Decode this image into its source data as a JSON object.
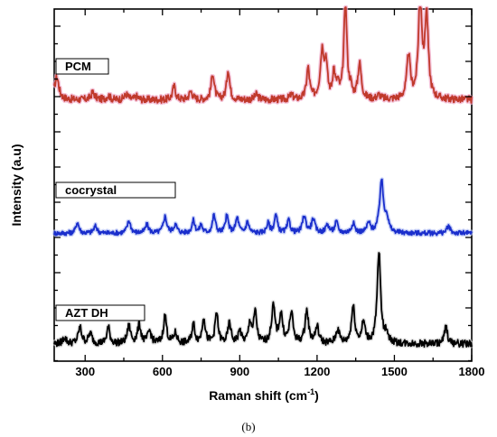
{
  "caption": "(b)",
  "chart_data": {
    "type": "line",
    "xlabel_main": "Raman shift (cm",
    "xlabel_sup": "-1",
    "xlabel_end": ")",
    "ylabel": "Intensity (a.u)",
    "xlim": [
      180,
      1800
    ],
    "xticks": [
      "300",
      "600",
      "900",
      "1200",
      "1500",
      "1800"
    ],
    "xtick_values": [
      300,
      600,
      900,
      1200,
      1500,
      1800
    ],
    "baseline_noise": 0.035,
    "series": [
      {
        "name": "PCM",
        "color": "#c0392b",
        "glow": "#f0a6c8",
        "ylim": [
          0,
          1
        ],
        "baseline": 0.1,
        "peaks": [
          [
            190,
            0.22,
            10
          ],
          [
            330,
            0.07,
            9
          ],
          [
            390,
            0.04,
            8
          ],
          [
            460,
            0.05,
            9
          ],
          [
            500,
            0.03,
            8
          ],
          [
            645,
            0.13,
            7
          ],
          [
            710,
            0.08,
            8
          ],
          [
            795,
            0.26,
            7
          ],
          [
            855,
            0.29,
            7
          ],
          [
            965,
            0.05,
            8
          ],
          [
            1100,
            0.04,
            8
          ],
          [
            1165,
            0.3,
            7
          ],
          [
            1220,
            0.47,
            9
          ],
          [
            1235,
            0.3,
            6
          ],
          [
            1265,
            0.25,
            6
          ],
          [
            1280,
            0.12,
            6
          ],
          [
            1310,
            0.95,
            7
          ],
          [
            1330,
            0.08,
            6
          ],
          [
            1365,
            0.34,
            8
          ],
          [
            1440,
            0.04,
            8
          ],
          [
            1555,
            0.42,
            8
          ],
          [
            1600,
            0.98,
            8
          ],
          [
            1625,
            0.8,
            8
          ]
        ]
      },
      {
        "name": "cocrystal",
        "color": "#1a2ecc",
        "glow": "#b3c0f5",
        "ylim": [
          0,
          1
        ],
        "baseline": 0.1,
        "peaks": [
          [
            270,
            0.16,
            7
          ],
          [
            340,
            0.1,
            8
          ],
          [
            470,
            0.18,
            8
          ],
          [
            540,
            0.12,
            8
          ],
          [
            610,
            0.24,
            8
          ],
          [
            650,
            0.12,
            8
          ],
          [
            720,
            0.18,
            7
          ],
          [
            750,
            0.12,
            6
          ],
          [
            800,
            0.26,
            7
          ],
          [
            850,
            0.25,
            7
          ],
          [
            890,
            0.22,
            7
          ],
          [
            930,
            0.16,
            7
          ],
          [
            1010,
            0.14,
            7
          ],
          [
            1040,
            0.26,
            7
          ],
          [
            1090,
            0.18,
            7
          ],
          [
            1150,
            0.25,
            8
          ],
          [
            1185,
            0.2,
            8
          ],
          [
            1240,
            0.12,
            8
          ],
          [
            1275,
            0.16,
            7
          ],
          [
            1340,
            0.14,
            8
          ],
          [
            1400,
            0.14,
            8
          ],
          [
            1450,
            0.75,
            9
          ],
          [
            1470,
            0.2,
            8
          ],
          [
            1710,
            0.1,
            8
          ]
        ]
      },
      {
        "name": "AZT DH",
        "color": "#000000",
        "glow": "#d6d6d6",
        "ylim": [
          0,
          1
        ],
        "baseline": 0.1,
        "peaks": [
          [
            220,
            0.06,
            8
          ],
          [
            280,
            0.16,
            8
          ],
          [
            320,
            0.1,
            8
          ],
          [
            390,
            0.16,
            7
          ],
          [
            470,
            0.17,
            8
          ],
          [
            510,
            0.18,
            8
          ],
          [
            550,
            0.12,
            8
          ],
          [
            610,
            0.28,
            7
          ],
          [
            650,
            0.1,
            8
          ],
          [
            720,
            0.19,
            7
          ],
          [
            760,
            0.26,
            7
          ],
          [
            810,
            0.3,
            7
          ],
          [
            860,
            0.2,
            7
          ],
          [
            900,
            0.12,
            7
          ],
          [
            940,
            0.2,
            7
          ],
          [
            960,
            0.3,
            7
          ],
          [
            1030,
            0.36,
            8
          ],
          [
            1060,
            0.28,
            8
          ],
          [
            1100,
            0.3,
            8
          ],
          [
            1160,
            0.32,
            8
          ],
          [
            1200,
            0.16,
            8
          ],
          [
            1280,
            0.14,
            8
          ],
          [
            1340,
            0.36,
            8
          ],
          [
            1380,
            0.2,
            8
          ],
          [
            1440,
            0.9,
            8
          ],
          [
            1470,
            0.1,
            7
          ],
          [
            1700,
            0.17,
            7
          ]
        ]
      }
    ]
  }
}
